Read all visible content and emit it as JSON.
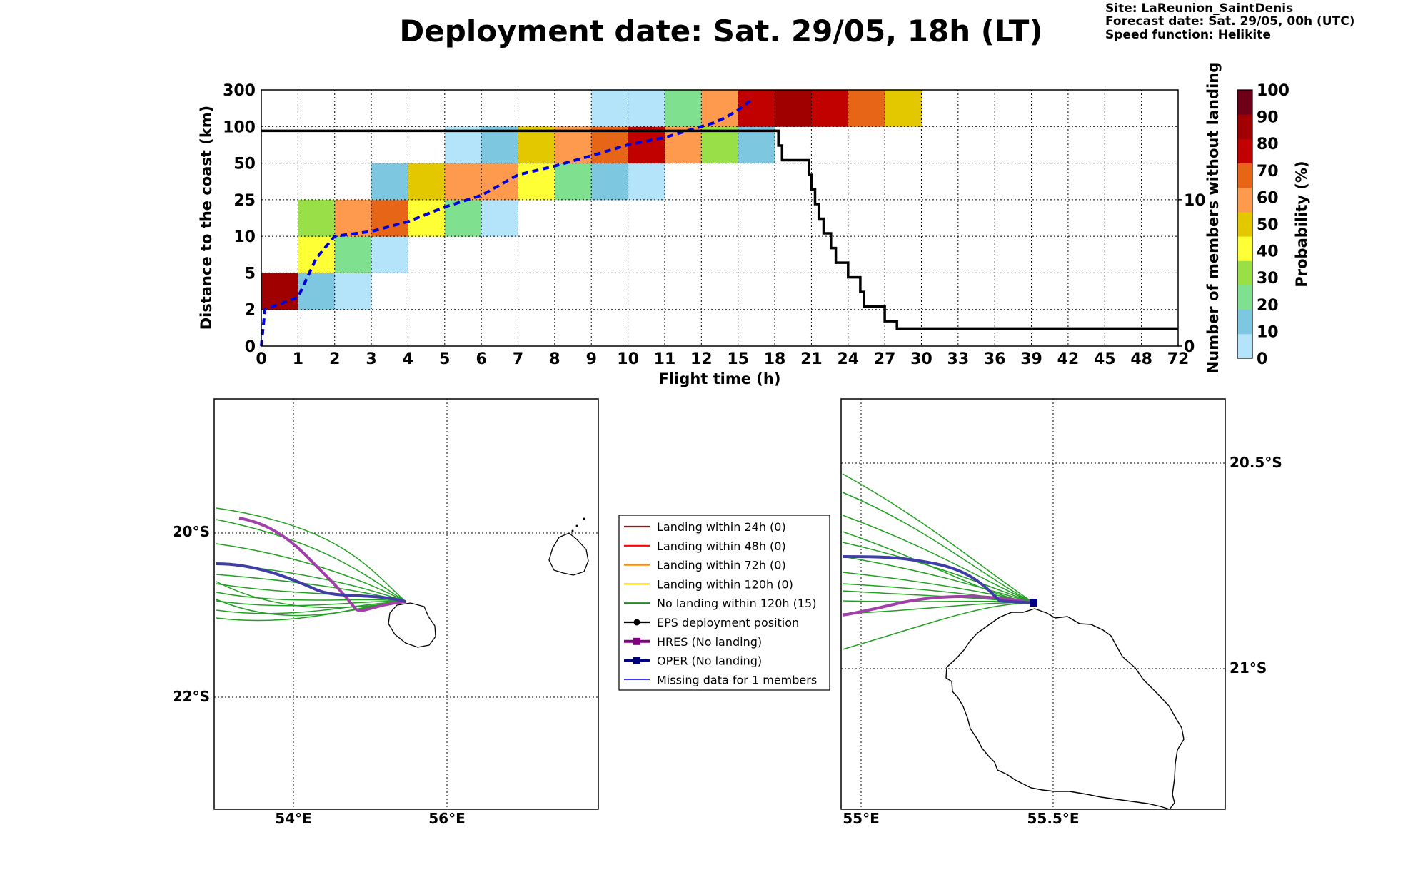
{
  "title": "Deployment date: Sat. 29/05, 18h (LT)",
  "info": {
    "site": "Site: LaReunion_SaintDenis",
    "forecast": "Forecast date: Sat. 29/05, 00h (UTC)",
    "speed": "Speed function: Helikite"
  },
  "chart_data": [
    {
      "type": "heatmap",
      "xlabel": "Flight time (h)",
      "ylabel": "Distance to the coast (km)",
      "y2label": "Number of members without landing",
      "x_ticks": [
        "0",
        "1",
        "2",
        "3",
        "4",
        "5",
        "6",
        "7",
        "8",
        "9",
        "10",
        "11",
        "12",
        "15",
        "18",
        "21",
        "24",
        "27",
        "30",
        "33",
        "36",
        "39",
        "42",
        "45",
        "48",
        "72"
      ],
      "y_ticks": [
        "0",
        "2",
        "5",
        "10",
        "25",
        "50",
        "100",
        "300"
      ],
      "y2_ticks": [
        "0",
        "10"
      ],
      "y2_range": [
        0,
        17.5
      ],
      "grid": true,
      "cells": [
        [
          0,
          1,
          95
        ],
        [
          1,
          1,
          10
        ],
        [
          1,
          2,
          40
        ],
        [
          1,
          3,
          30
        ],
        [
          2,
          1,
          0
        ],
        [
          2,
          2,
          20
        ],
        [
          2,
          3,
          60
        ],
        [
          3,
          2,
          0
        ],
        [
          3,
          3,
          70
        ],
        [
          3,
          4,
          10
        ],
        [
          4,
          3,
          40
        ],
        [
          4,
          4,
          50
        ],
        [
          5,
          3,
          20
        ],
        [
          5,
          4,
          60
        ],
        [
          5,
          5,
          0
        ],
        [
          6,
          3,
          0
        ],
        [
          6,
          4,
          60
        ],
        [
          6,
          5,
          10
        ],
        [
          7,
          4,
          40
        ],
        [
          7,
          5,
          50
        ],
        [
          8,
          4,
          20
        ],
        [
          8,
          5,
          60
        ],
        [
          9,
          4,
          10
        ],
        [
          9,
          5,
          70
        ],
        [
          9,
          6,
          0
        ],
        [
          10,
          4,
          0
        ],
        [
          10,
          5,
          80
        ],
        [
          10,
          6,
          0
        ],
        [
          11,
          5,
          60
        ],
        [
          11,
          6,
          20
        ],
        [
          12,
          5,
          30
        ],
        [
          12,
          6,
          60
        ],
        [
          13,
          5,
          10
        ],
        [
          13,
          6,
          80
        ],
        [
          14,
          6,
          95
        ],
        [
          15,
          6,
          80
        ],
        [
          16,
          6,
          70
        ],
        [
          17,
          6,
          50
        ]
      ],
      "median_line": {
        "x": [
          0,
          0.1,
          1,
          1.5,
          2,
          3,
          4,
          5,
          6,
          7,
          8,
          9,
          10,
          11,
          12,
          13,
          14,
          15,
          16
        ],
        "y": [
          0,
          2,
          3,
          7,
          10,
          12,
          16,
          22,
          28,
          42,
          48,
          60,
          75,
          85,
          100,
          120,
          150,
          190,
          240
        ]
      },
      "members_without_landing": {
        "x": [
          0,
          18,
          18.3,
          18.6,
          20.6,
          20.8,
          21,
          21.3,
          21.6,
          22,
          22.6,
          23,
          24,
          25,
          25.3,
          26,
          27,
          28,
          28.7,
          29,
          30,
          72
        ],
        "y": [
          14.7,
          14.7,
          13.7,
          12.7,
          12.7,
          11.7,
          10.7,
          9.7,
          8.7,
          7.7,
          6.7,
          5.7,
          4.7,
          3.7,
          2.7,
          2.7,
          1.7,
          1.2,
          1.2,
          1.2,
          1.2,
          1.2
        ]
      }
    }
  ],
  "colorbar": {
    "label": "Probability (%)",
    "ticks": [
      "0",
      "10",
      "20",
      "30",
      "40",
      "50",
      "60",
      "70",
      "80",
      "90",
      "100"
    ],
    "colors": [
      "#b4e4fa",
      "#7dc8e0",
      "#7fe08f",
      "#99df47",
      "#ffff36",
      "#e3c800",
      "#fe9a4d",
      "#e76517",
      "#c10000",
      "#a10000",
      "#6d0018"
    ]
  },
  "legend": {
    "items": [
      {
        "label": "Landing within 24h (0)",
        "color": "#8b1a1a",
        "style": "line"
      },
      {
        "label": "Landing within 48h (0)",
        "color": "#ff0000",
        "style": "line"
      },
      {
        "label": "Landing within 72h (0)",
        "color": "#ff8c00",
        "style": "line"
      },
      {
        "label": "Landing within 120h (0)",
        "color": "#ffd700",
        "style": "line"
      },
      {
        "label": "No landing within 120h (15)",
        "color": "#228b22",
        "style": "line"
      },
      {
        "label": "EPS deployment position",
        "color": "#000000",
        "style": "dot"
      },
      {
        "label": "HRES (No landing)",
        "color": "#800080",
        "style": "square"
      },
      {
        "label": "OPER (No landing)",
        "color": "#000080",
        "style": "square"
      },
      {
        "label": "Missing data for 1 members",
        "color": "#3b3bff",
        "style": "thin"
      }
    ]
  },
  "map_left": {
    "lat_labels": [
      "20°S",
      "22°S"
    ],
    "lon_labels": [
      "54°E",
      "56°E"
    ]
  },
  "map_right": {
    "lat_labels": [
      "20.5°S",
      "21°S"
    ],
    "lon_labels": [
      "55°E",
      "55.5°E"
    ]
  }
}
